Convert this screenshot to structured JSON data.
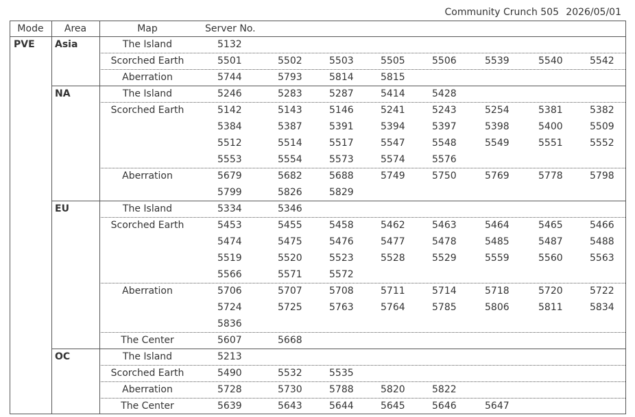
{
  "header": {
    "title": "Community Crunch 505",
    "date": "2026/05/01"
  },
  "table": {
    "columns": [
      "Mode",
      "Area",
      "Map",
      "Server No."
    ],
    "mode": "PVE",
    "areas": [
      {
        "name": "Asia",
        "maps": [
          {
            "name": "The Island",
            "servers": [
              5132
            ]
          },
          {
            "name": "Scorched Earth",
            "servers": [
              5501,
              5502,
              5503,
              5505,
              5506,
              5539,
              5540,
              5542
            ]
          },
          {
            "name": "Aberration",
            "servers": [
              5744,
              5793,
              5814,
              5815
            ]
          }
        ]
      },
      {
        "name": "NA",
        "maps": [
          {
            "name": "The Island",
            "servers": [
              5246,
              5283,
              5287,
              5414,
              5428
            ]
          },
          {
            "name": "Scorched Earth",
            "servers": [
              5142,
              5143,
              5146,
              5241,
              5243,
              5254,
              5381,
              5382,
              5384,
              5387,
              5391,
              5394,
              5397,
              5398,
              5400,
              5509,
              5512,
              5514,
              5517,
              5547,
              5548,
              5549,
              5551,
              5552,
              5553,
              5554,
              5573,
              5574,
              5576
            ]
          },
          {
            "name": "Aberration",
            "servers": [
              5679,
              5682,
              5688,
              5749,
              5750,
              5769,
              5778,
              5798,
              5799,
              5826,
              5829
            ]
          }
        ]
      },
      {
        "name": "EU",
        "maps": [
          {
            "name": "The Island",
            "servers": [
              5334,
              5346
            ]
          },
          {
            "name": "Scorched Earth",
            "servers": [
              5453,
              5455,
              5458,
              5462,
              5463,
              5464,
              5465,
              5466,
              5474,
              5475,
              5476,
              5477,
              5478,
              5485,
              5487,
              5488,
              5519,
              5520,
              5523,
              5528,
              5529,
              5559,
              5560,
              5563,
              5566,
              5571,
              5572
            ]
          },
          {
            "name": "Aberration",
            "servers": [
              5706,
              5707,
              5708,
              5711,
              5714,
              5718,
              5720,
              5722,
              5724,
              5725,
              5763,
              5764,
              5785,
              5806,
              5811,
              5834,
              5836
            ]
          },
          {
            "name": "The Center",
            "servers": [
              5607,
              5668
            ]
          }
        ]
      },
      {
        "name": "OC",
        "maps": [
          {
            "name": "The Island",
            "servers": [
              5213
            ]
          },
          {
            "name": "Scorched Earth",
            "servers": [
              5490,
              5532,
              5535
            ]
          },
          {
            "name": "Aberration",
            "servers": [
              5728,
              5730,
              5788,
              5820,
              5822
            ]
          },
          {
            "name": "The Center",
            "servers": [
              5639,
              5643,
              5644,
              5645,
              5646,
              5647
            ]
          }
        ]
      }
    ]
  }
}
